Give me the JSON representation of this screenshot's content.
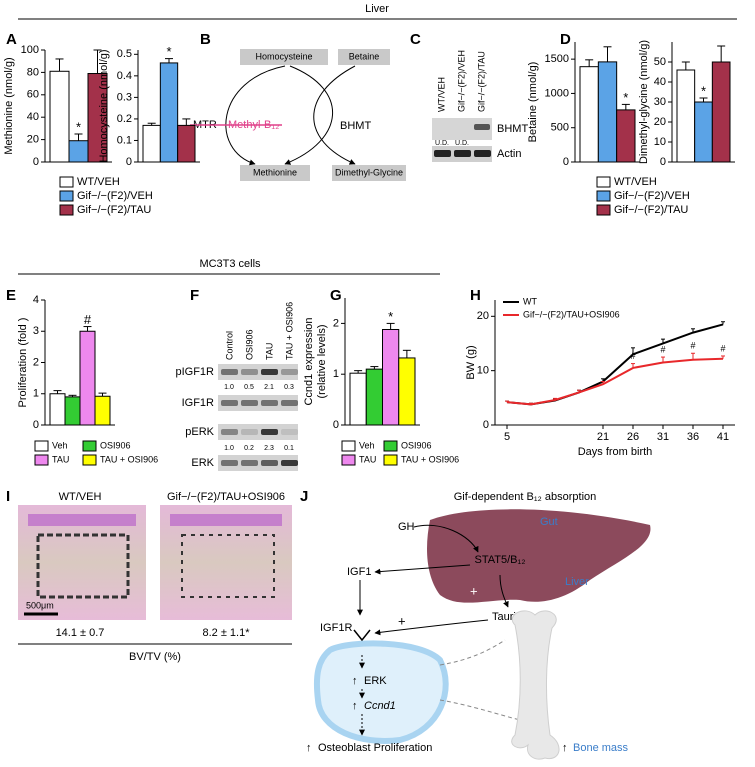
{
  "headers": {
    "liver": "Liver",
    "cells": "MC3T3 cells"
  },
  "panel_letters": [
    "A",
    "B",
    "C",
    "D",
    "E",
    "F",
    "G",
    "H",
    "I",
    "J"
  ],
  "chart_data": [
    {
      "type": "bar",
      "ylabel": "Methionine (nmol/g)",
      "categories": [
        "WT/VEH",
        "Gif−/−(F2)/VEH",
        "Gif−/−(F2)/TAU"
      ],
      "colors": [
        "#ffffff",
        "#5ba3e6",
        "#a3314a"
      ],
      "values": [
        81,
        19,
        79
      ],
      "errors": [
        11,
        6,
        21
      ],
      "significance": [
        null,
        "*",
        null
      ],
      "ylim": [
        0,
        100
      ],
      "yticks": [
        0,
        20,
        40,
        60,
        80,
        100
      ]
    },
    {
      "type": "bar",
      "ylabel": "Homocysteine (nmol/g)",
      "values": [
        0.17,
        0.46,
        0.17
      ],
      "errors": [
        0.01,
        0.02,
        0.03
      ],
      "significance": [
        null,
        "*",
        null
      ],
      "ylim": [
        0,
        0.52
      ],
      "yticks": [
        0,
        0.1,
        0.2,
        0.3,
        0.4,
        0.5
      ]
    },
    {
      "type": "bar",
      "ylabel": "Betaine (nmol/g)",
      "categories": [
        "WT/VEH",
        "Gif−/−(F2)/VEH",
        "Gif−/−(F2)/TAU"
      ],
      "colors": [
        "#ffffff",
        "#5ba3e6",
        "#a3314a"
      ],
      "values": [
        1390,
        1460,
        760
      ],
      "errors": [
        100,
        220,
        80
      ],
      "significance": [
        null,
        null,
        "*"
      ],
      "ylim": [
        0,
        1750
      ],
      "yticks": [
        0,
        500,
        1000,
        1500
      ]
    },
    {
      "type": "bar",
      "ylabel": "Dimethyl-glycine (nmol/g)",
      "values": [
        46,
        30,
        50
      ],
      "errors": [
        4,
        2,
        8
      ],
      "significance": [
        null,
        "*",
        null
      ],
      "ylim": [
        0,
        60
      ],
      "yticks": [
        0,
        10,
        20,
        30,
        40,
        50
      ]
    },
    {
      "type": "bar",
      "ylabel": "Proliferation (fold )",
      "categories": [
        "Veh",
        "OSI906",
        "TAU",
        "TAU + OSI906"
      ],
      "colors": [
        "#ffffff",
        "#33cc33",
        "#ee88ee",
        "#ffff00"
      ],
      "values": [
        1.0,
        0.9,
        3.0,
        0.92
      ],
      "errors": [
        0.1,
        0.05,
        0.15,
        0.1
      ],
      "significance": [
        null,
        null,
        "#",
        null
      ],
      "ylim": [
        0,
        4
      ],
      "yticks": [
        0,
        1,
        2,
        3,
        4
      ]
    },
    {
      "type": "bar",
      "ylabel": [
        "Ccnd1 expression",
        "(relative levels)"
      ],
      "categories": [
        "Veh",
        "OSI906",
        "TAU",
        "TAU + OSI906"
      ],
      "colors": [
        "#ffffff",
        "#33cc33",
        "#ee88ee",
        "#ffff00"
      ],
      "values": [
        1.02,
        1.1,
        1.88,
        1.32
      ],
      "errors": [
        0.05,
        0.05,
        0.12,
        0.15
      ],
      "significance": [
        null,
        null,
        "*",
        null
      ],
      "ylim": [
        0,
        2.5
      ],
      "yticks": [
        0,
        1,
        2
      ]
    },
    {
      "type": "line",
      "xlabel": "Days from birth",
      "ylabel": "BW (g)",
      "x": [
        5,
        9,
        13,
        17,
        21,
        26,
        31,
        36,
        41
      ],
      "series": [
        {
          "name": "WT",
          "color": "#000000",
          "values": [
            4.2,
            3.8,
            4.5,
            6,
            8,
            13,
            15,
            17,
            18.5
          ],
          "errors": [
            0.2,
            0.2,
            0.3,
            0.4,
            0.5,
            1.2,
            0.8,
            0.7,
            0.5
          ]
        },
        {
          "name": "Gif−/−(F2)/TAU+OSI906",
          "color": "#e8282b",
          "values": [
            4.2,
            3.8,
            4.6,
            6,
            7.5,
            10.5,
            11.5,
            12,
            12.2
          ],
          "errors": [
            0.2,
            0.2,
            0.3,
            0.4,
            0.5,
            0.8,
            1,
            1.2,
            0.5
          ]
        }
      ],
      "significance": [
        null,
        null,
        null,
        null,
        null,
        "#",
        "#",
        "#",
        "#"
      ],
      "xlim": [
        3,
        43
      ],
      "xticks": [
        5,
        21,
        26,
        31,
        36,
        41
      ],
      "ylim": [
        0,
        23
      ],
      "yticks": [
        0,
        10,
        20
      ]
    }
  ],
  "pathway_b": {
    "homocysteine": "Homocysteine",
    "betaine": "Betaine",
    "methionine": "Methionine",
    "dimethylglycine": "Dimethyl-Glycine",
    "mtr": "MTR",
    "cofactor": "Methyl-B₁₂",
    "bhmt": "BHMT"
  },
  "blot_c": {
    "columns": [
      "WT/VEH",
      "Gif−/−(F2)/VEH",
      "Gif−/−(F2)/TAU"
    ],
    "rows": [
      "BHMT",
      "Actin"
    ],
    "not_detected": [
      "U.D.",
      "U.D."
    ]
  },
  "blot_f": {
    "columns": [
      "Control",
      "OSI906",
      "TAU",
      "TAU + OSI906"
    ],
    "rows": [
      "pIGF1R",
      "IGF1R",
      "pERK",
      "ERK"
    ],
    "pigf1r_levels": [
      "1.0",
      "0.5",
      "2.1",
      "0.3"
    ],
    "perk_levels": [
      "1.0",
      "0.2",
      "2.3",
      "0.1"
    ]
  },
  "histology_i": {
    "columns": [
      "WT/VEH",
      "Gif−/−(F2)/TAU+OSI906"
    ],
    "scale_bar": "500μm",
    "measurements": [
      "14.1 ± 0.7",
      "8.2 ± 1.1*"
    ],
    "measure_label": "BV/TV (%)"
  },
  "model_j": {
    "title": "Gif-dependent B₁₂ absorption",
    "gut": "Gut",
    "gh": "GH",
    "stat5": "STAT5/B₁₂",
    "liver": "Liver",
    "igf1": "IGF1",
    "taurine": "Taurine",
    "igf1r": "IGF1R",
    "plus_liver": "+",
    "plus_taurine": "+",
    "erk": "ERK",
    "ccnd1": "Ccnd1",
    "osteoblast": "Osteoblast Proliferation",
    "bone": "Bone mass"
  }
}
